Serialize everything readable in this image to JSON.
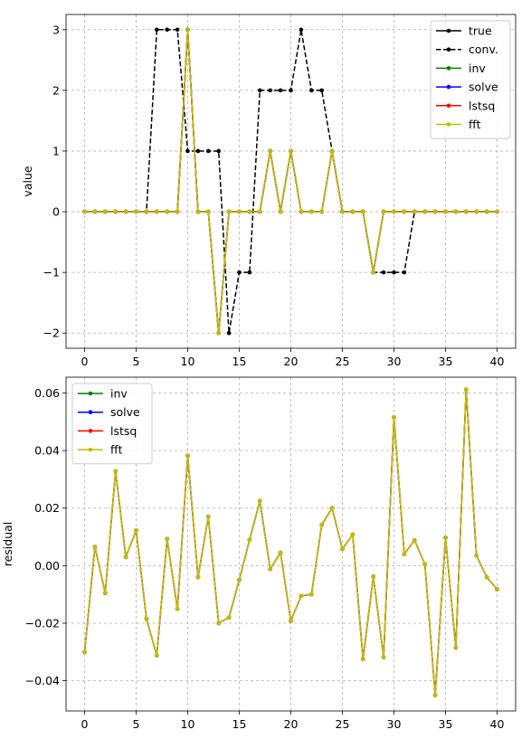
{
  "chart_data": [
    {
      "type": "line",
      "xlabel": "",
      "ylabel": "value",
      "xlim": [
        -1.8,
        41.8
      ],
      "ylim": [
        -2.25,
        3.25
      ],
      "xticks": [
        0,
        5,
        10,
        15,
        20,
        25,
        30,
        35,
        40
      ],
      "yticks": [
        -2,
        -1,
        0,
        1,
        2,
        3
      ],
      "ytick_labels": [
        "−2",
        "−1",
        "0",
        "1",
        "2",
        "3"
      ],
      "xtick_labels": [
        "0",
        "5",
        "10",
        "15",
        "20",
        "25",
        "30",
        "35",
        "40"
      ],
      "grid": true,
      "legend_position": "top-right",
      "legend_lines": 6,
      "x": [
        0,
        1,
        2,
        3,
        4,
        5,
        6,
        7,
        8,
        9,
        10,
        11,
        12,
        13,
        14,
        15,
        16,
        17,
        18,
        19,
        20,
        21,
        22,
        23,
        24,
        25,
        26,
        27,
        28,
        29,
        30,
        31,
        32,
        33,
        34,
        35,
        36,
        37,
        38,
        39,
        40
      ],
      "series": [
        {
          "name": "true",
          "color": "#000000",
          "dash": "solid",
          "values": [
            0,
            0,
            0,
            0,
            0,
            0,
            0,
            0,
            0,
            0,
            3,
            0,
            0,
            -2,
            0,
            0,
            0,
            0,
            1,
            0,
            1,
            0,
            0,
            0,
            1,
            0,
            0,
            0,
            -1,
            0,
            0,
            0,
            0,
            0,
            0,
            0,
            0,
            0,
            0,
            0,
            0
          ]
        },
        {
          "name": "conv.",
          "color": "#000000",
          "dash": "dashed",
          "values": [
            0,
            0,
            0,
            0,
            0,
            0,
            0,
            3,
            3,
            3,
            1,
            1,
            1,
            1,
            -2,
            -1,
            -1,
            2,
            2,
            2,
            2,
            3,
            2,
            2,
            1,
            0,
            0,
            0,
            -1,
            -1,
            -1,
            -1,
            0,
            0,
            0,
            0,
            0,
            0,
            0,
            0,
            0
          ]
        },
        {
          "name": "inv",
          "color": "#008000",
          "dash": "solid",
          "values": [
            0,
            0,
            0,
            0,
            0,
            0,
            0,
            0,
            0,
            0,
            3,
            0,
            0,
            -2,
            0,
            0,
            0,
            0,
            1,
            0,
            1,
            0,
            0,
            0,
            1,
            0,
            0,
            0,
            -1,
            0,
            0,
            0,
            0,
            0,
            0,
            0,
            0,
            0,
            0,
            0,
            0
          ]
        },
        {
          "name": "solve",
          "color": "#0000ff",
          "dash": "solid",
          "values": [
            0,
            0,
            0,
            0,
            0,
            0,
            0,
            0,
            0,
            0,
            3,
            0,
            0,
            -2,
            0,
            0,
            0,
            0,
            1,
            0,
            1,
            0,
            0,
            0,
            1,
            0,
            0,
            0,
            -1,
            0,
            0,
            0,
            0,
            0,
            0,
            0,
            0,
            0,
            0,
            0,
            0
          ]
        },
        {
          "name": "lstsq",
          "color": "#ff0000",
          "dash": "solid",
          "values": [
            0,
            0,
            0,
            0,
            0,
            0,
            0,
            0,
            0,
            0,
            3,
            0,
            0,
            -2,
            0,
            0,
            0,
            0,
            1,
            0,
            1,
            0,
            0,
            0,
            1,
            0,
            0,
            0,
            -1,
            0,
            0,
            0,
            0,
            0,
            0,
            0,
            0,
            0,
            0,
            0,
            0
          ]
        },
        {
          "name": "fft",
          "color": "#bfbf00",
          "dash": "solid",
          "values": [
            0,
            0,
            0,
            0,
            0,
            0,
            0,
            0,
            0,
            0,
            3,
            0,
            0,
            -2,
            0,
            0,
            0,
            0,
            1,
            0,
            1,
            0,
            0,
            0,
            1,
            0,
            0,
            0,
            -1,
            0,
            0,
            0,
            0,
            0,
            0,
            0,
            0,
            0,
            0,
            0,
            0
          ]
        }
      ]
    },
    {
      "type": "line",
      "xlabel": "",
      "ylabel": "residual",
      "xlim": [
        -1.8,
        41.8
      ],
      "ylim": [
        -0.0505,
        0.0655
      ],
      "xticks": [
        0,
        5,
        10,
        15,
        20,
        25,
        30,
        35,
        40
      ],
      "yticks": [
        -0.04,
        -0.02,
        0.0,
        0.02,
        0.04,
        0.06
      ],
      "ytick_labels": [
        "−0.04",
        "−0.02",
        "0.00",
        "0.02",
        "0.04",
        "0.06"
      ],
      "xtick_labels": [
        "0",
        "5",
        "10",
        "15",
        "20",
        "25",
        "30",
        "35",
        "40"
      ],
      "grid": true,
      "legend_position": "top-left",
      "legend_lines": 4,
      "x": [
        0,
        1,
        2,
        3,
        4,
        5,
        6,
        7,
        8,
        9,
        10,
        11,
        12,
        13,
        14,
        15,
        16,
        17,
        18,
        19,
        20,
        21,
        22,
        23,
        24,
        25,
        26,
        27,
        28,
        29,
        30,
        31,
        32,
        33,
        34,
        35,
        36,
        37,
        38,
        39,
        40
      ],
      "series": [
        {
          "name": "inv",
          "color": "#008000",
          "dash": "solid",
          "values": [
            -0.03,
            0.0065,
            -0.0095,
            0.0328,
            0.003,
            0.0122,
            -0.0185,
            -0.0312,
            0.0093,
            -0.015,
            0.0382,
            -0.004,
            0.017,
            -0.02,
            -0.018,
            -0.005,
            0.009,
            0.0225,
            -0.0012,
            0.0045,
            -0.0192,
            -0.0105,
            -0.01,
            0.0142,
            0.02,
            0.0058,
            0.0108,
            -0.0325,
            -0.0038,
            -0.0318,
            0.0515,
            0.004,
            0.0088,
            0.0005,
            -0.045,
            0.0097,
            -0.0285,
            0.0612,
            0.0035,
            -0.004,
            -0.0082
          ]
        },
        {
          "name": "solve",
          "color": "#0000ff",
          "dash": "solid",
          "values": [
            -0.03,
            0.0065,
            -0.0095,
            0.0328,
            0.003,
            0.0122,
            -0.0185,
            -0.0312,
            0.0093,
            -0.015,
            0.0382,
            -0.004,
            0.017,
            -0.02,
            -0.018,
            -0.005,
            0.009,
            0.0225,
            -0.0012,
            0.0045,
            -0.0192,
            -0.0105,
            -0.01,
            0.0142,
            0.02,
            0.0058,
            0.0108,
            -0.0325,
            -0.0038,
            -0.0318,
            0.0515,
            0.004,
            0.0088,
            0.0005,
            -0.045,
            0.0097,
            -0.0285,
            0.0612,
            0.0035,
            -0.004,
            -0.0082
          ]
        },
        {
          "name": "lstsq",
          "color": "#ff0000",
          "dash": "solid",
          "values": [
            -0.03,
            0.0065,
            -0.0095,
            0.0328,
            0.003,
            0.0122,
            -0.0185,
            -0.0312,
            0.0093,
            -0.015,
            0.0382,
            -0.004,
            0.017,
            -0.02,
            -0.018,
            -0.005,
            0.009,
            0.0225,
            -0.0012,
            0.0045,
            -0.0192,
            -0.0105,
            -0.01,
            0.0142,
            0.02,
            0.0058,
            0.0108,
            -0.0325,
            -0.0038,
            -0.0318,
            0.0515,
            0.004,
            0.0088,
            0.0005,
            -0.045,
            0.0097,
            -0.0285,
            0.0612,
            0.0035,
            -0.004,
            -0.0082
          ]
        },
        {
          "name": "fft",
          "color": "#bfbf00",
          "dash": "solid",
          "values": [
            -0.03,
            0.0065,
            -0.0095,
            0.0328,
            0.003,
            0.0122,
            -0.0185,
            -0.0312,
            0.0093,
            -0.015,
            0.0382,
            -0.004,
            0.017,
            -0.02,
            -0.018,
            -0.005,
            0.009,
            0.0225,
            -0.0012,
            0.0045,
            -0.0192,
            -0.0105,
            -0.01,
            0.0142,
            0.02,
            0.0058,
            0.0108,
            -0.0325,
            -0.0038,
            -0.0318,
            0.0515,
            0.004,
            0.0088,
            0.0005,
            -0.045,
            0.0097,
            -0.0285,
            0.0612,
            0.0035,
            -0.004,
            -0.0082
          ]
        }
      ]
    }
  ]
}
